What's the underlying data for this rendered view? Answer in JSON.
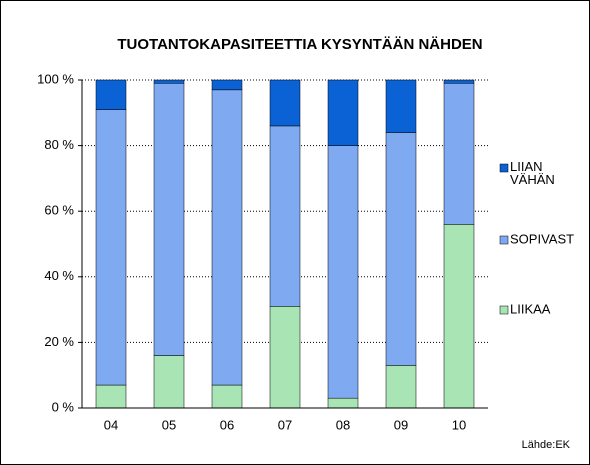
{
  "chart_data": {
    "type": "stacked_bar",
    "title": "TUOTANTOKAPASITEETTIA KYSYNTÄÄN NÄHDEN",
    "categories": [
      "04",
      "05",
      "06",
      "07",
      "08",
      "09",
      "10"
    ],
    "series": [
      {
        "name": "LIIKAA",
        "color": "#a8e4b4",
        "values": [
          7,
          16,
          7,
          31,
          3,
          13,
          56
        ]
      },
      {
        "name": "SOPIVAST",
        "color": "#7faaf2",
        "values": [
          84,
          83,
          90,
          55,
          77,
          71,
          43
        ]
      },
      {
        "name": "LIIAN VÄHÄN",
        "color": "#0a62d4",
        "values": [
          9,
          1,
          3,
          14,
          20,
          16,
          1
        ]
      }
    ],
    "ylim": [
      0,
      100
    ],
    "yticks": [
      {
        "value": 0,
        "label": "0 %"
      },
      {
        "value": 20,
        "label": "20 %"
      },
      {
        "value": 40,
        "label": "40 %"
      },
      {
        "value": 60,
        "label": "60 %"
      },
      {
        "value": 80,
        "label": "80 %"
      },
      {
        "value": 100,
        "label": "100 %"
      }
    ],
    "grid": true,
    "legend": "right",
    "annotations": [
      "Lähde:EK"
    ]
  }
}
